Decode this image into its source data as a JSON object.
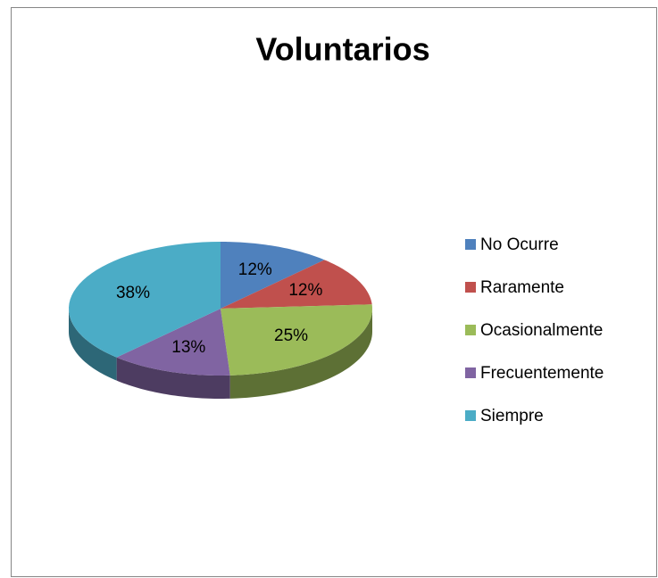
{
  "chart_data": {
    "type": "pie",
    "title": "Voluntarios",
    "categories": [
      "No Ocurre",
      "Raramente",
      "Ocasionalmente",
      "Frecuentemente",
      "Siempre"
    ],
    "values": [
      12,
      12,
      25,
      13,
      38
    ],
    "value_labels": [
      "12%",
      "12%",
      "25%",
      "13%",
      "38%"
    ],
    "colors": [
      "#4f81bd",
      "#c0504d",
      "#9bbb59",
      "#8064a2",
      "#4bacc6"
    ],
    "legend": "right"
  }
}
